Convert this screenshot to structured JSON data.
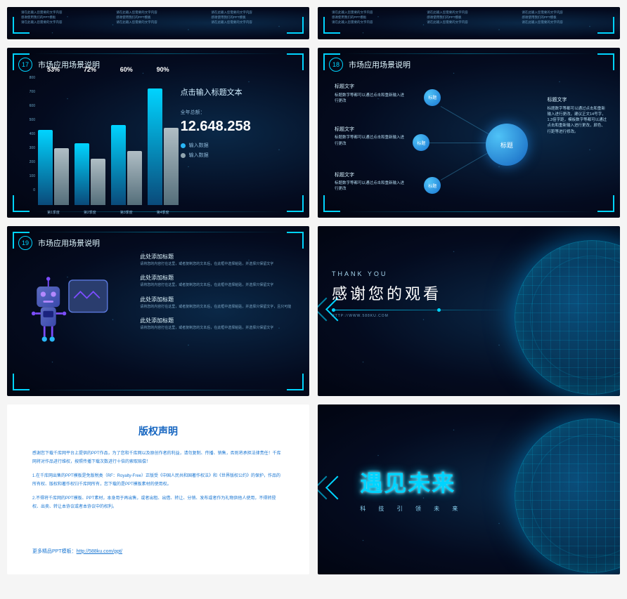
{
  "colors": {
    "accent": "#00d4ff",
    "bg_dark_center": "#0a2847",
    "bg_dark_edge": "#020511",
    "text_light": "#e0f7ff",
    "text_dim": "#8ab4d4",
    "blue_primary": "#1565c0"
  },
  "slide_top_partial": {
    "lines": [
      "请在此输入您需要的文字内容",
      "感谢使用我们的PPT模板",
      "请在此输入您需要的文字内容"
    ]
  },
  "slide17": {
    "num": "17",
    "title": "市场应用场景说明",
    "y_ticks": [
      "800",
      "700",
      "600",
      "500",
      "400",
      "300",
      "200",
      "100",
      "0"
    ],
    "bars": [
      {
        "pct": "53%",
        "h1": 58,
        "h2": 44,
        "label": "第1季度"
      },
      {
        "pct": "72%",
        "h1": 48,
        "h2": 36,
        "label": "第2季度"
      },
      {
        "pct": "60%",
        "h1": 62,
        "h2": 42,
        "label": "第3季度"
      },
      {
        "pct": "90%",
        "h1": 90,
        "h2": 60,
        "label": "第4季度"
      }
    ],
    "right_title": "点击输入标题文本",
    "right_sub": "全年总额：",
    "big_num": "12.648.258",
    "legend1": "输入数据",
    "legend2": "输入数据",
    "legend1_color": "#29b6f6",
    "legend2_color": "#90a4ae"
  },
  "slide18": {
    "num": "18",
    "title": "市场应用场景说明",
    "center": "标题",
    "small": "标题",
    "bubble_h": "标题文字",
    "bubble_d": "标题数字等都可以通过点击和重新输入进行更改",
    "right_h": "标题文字",
    "right_d": "标题数字等都可以通过点击和重新输入进行更改，建议正文14号字，1.3倍字距，模板数字等都可以通过点击和重新输入进行更改，颜色、行距等进行修改。"
  },
  "slide19": {
    "num": "19",
    "title": "市场应用场景说明",
    "items": [
      {
        "h": "此处添加标题",
        "d": "请将您的内容打在这里，或者复制您的文本后，在此框中选择粘贴，并选择只保留文字"
      },
      {
        "h": "此处添加标题",
        "d": "请将您的内容打在这里，或者复制您的文本后，在此框中选择粘贴，并选择只保留文字"
      },
      {
        "h": "此处添加标题",
        "d": "请将您的内容打在这里，或者复制您的文本后，在此框中选择粘贴，并选择只保留文字，且只可能"
      },
      {
        "h": "此处添加标题",
        "d": "请将您的内容打在这里，或者复制您的文本后，在此框中选择粘贴，并选择只保留文字"
      }
    ]
  },
  "slide_thankyou": {
    "en": "THANK YOU",
    "cn": "感谢您的观看",
    "url": "HTTP://WWW.588KU.COM"
  },
  "slide_copyright": {
    "title": "版权声明",
    "p1": "感谢您下载千库网平台上提供的PPT作品，为了您和千库网以及原创作者的利益，请勿复制、传播、销售，否则将承担法律责任！千库网将对作品进行维权，按照传播下载次数进行十倍的索取赔偿！",
    "p2": "1.在千库网出售的PPT模板是免版税类（RF：Royalty-Free）正版受《中国人民共和国著作权法》和《世界版权公约》的保护，作品的所有权、版权和著作权归千库网所有，您下载的是PPT模板素材的使用权。",
    "p3": "2.不得将千库网的PPT模板、PPT素材，本身用于再出售，或者出租、出借、转让、分销、发布或者作为礼物供他人使用，不得转授权、出卖、转让本协议或者本协议中的权利。",
    "footer_label": "更多精品PPT模板：",
    "footer_url": "http://588ku.com/ppt/"
  },
  "slide_future": {
    "title": "遇见未来",
    "sub": "科 技 引 领 未 来"
  }
}
